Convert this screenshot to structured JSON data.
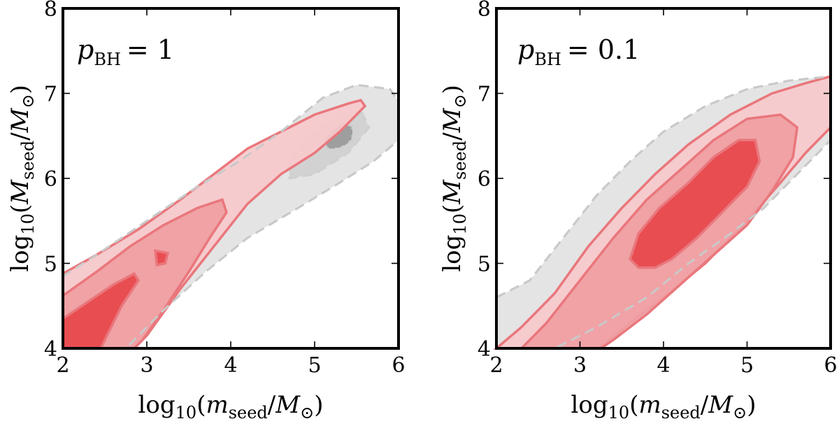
{
  "chart_data": [
    {
      "type": "contour",
      "name": "panel-left",
      "annotation": {
        "symbol": "p",
        "sub": "BH",
        "eq": "= 1"
      },
      "xlabel": {
        "pre": "log",
        "sub10": "10",
        "open": "(",
        "m": "m",
        "msub": "seed",
        "slash": "/",
        "M": "M",
        "Msub": "⊙",
        "close": ")"
      },
      "ylabel": {
        "pre": "log",
        "sub10": "10",
        "open": "(",
        "m": "M",
        "msub": "seed",
        "slash": "/",
        "M": "M",
        "Msub": "⊙",
        "close": ")"
      },
      "xlim": [
        2,
        6
      ],
      "ylim": [
        4,
        8
      ],
      "xticks": [
        "2",
        "3",
        "4",
        "5",
        "6"
      ],
      "yticks": [
        "4",
        "5",
        "6",
        "7",
        "8"
      ],
      "gray_contours": [
        {
          "level": "outer",
          "color": "#e4e4e4",
          "points": [
            [
              2.0,
              4.85
            ],
            [
              2.4,
              5.1
            ],
            [
              3.0,
              5.5
            ],
            [
              3.6,
              5.9
            ],
            [
              4.1,
              6.2
            ],
            [
              4.6,
              6.55
            ],
            [
              5.1,
              6.95
            ],
            [
              5.5,
              7.1
            ],
            [
              5.9,
              7.05
            ],
            [
              6.0,
              6.9
            ],
            [
              6.0,
              6.45
            ],
            [
              5.7,
              6.2
            ],
            [
              5.3,
              5.95
            ],
            [
              4.8,
              5.65
            ],
            [
              4.2,
              5.3
            ],
            [
              3.7,
              4.9
            ],
            [
              3.2,
              4.45
            ],
            [
              2.8,
              4.05
            ],
            [
              2.7,
              4.0
            ],
            [
              2.0,
              4.0
            ]
          ]
        },
        {
          "level": "mid",
          "color": "#d2d2d2",
          "points": [
            [
              4.7,
              6.2
            ],
            [
              5.0,
              6.55
            ],
            [
              5.3,
              6.75
            ],
            [
              5.55,
              6.8
            ],
            [
              5.65,
              6.6
            ],
            [
              5.4,
              6.3
            ],
            [
              5.0,
              6.05
            ],
            [
              4.7,
              6.0
            ]
          ]
        },
        {
          "level": "inner",
          "color": "#9e9e9e",
          "points": [
            [
              5.1,
              6.45
            ],
            [
              5.3,
              6.65
            ],
            [
              5.45,
              6.62
            ],
            [
              5.45,
              6.45
            ],
            [
              5.3,
              6.35
            ],
            [
              5.15,
              6.35
            ]
          ]
        }
      ],
      "red_contours": [
        {
          "level": "outer",
          "color": "#f7c9cc",
          "points": [
            [
              2.0,
              4.88
            ],
            [
              2.4,
              5.1
            ],
            [
              2.9,
              5.4
            ],
            [
              3.4,
              5.75
            ],
            [
              3.8,
              6.05
            ],
            [
              4.2,
              6.35
            ],
            [
              4.6,
              6.55
            ],
            [
              5.0,
              6.75
            ],
            [
              5.4,
              6.88
            ],
            [
              5.55,
              6.92
            ],
            [
              5.6,
              6.85
            ],
            [
              5.5,
              6.75
            ],
            [
              5.3,
              6.55
            ],
            [
              5.0,
              6.3
            ],
            [
              4.6,
              6.05
            ],
            [
              4.2,
              5.7
            ],
            [
              3.8,
              5.2
            ],
            [
              3.4,
              4.7
            ],
            [
              3.0,
              4.15
            ],
            [
              2.85,
              4.0
            ],
            [
              2.0,
              4.0
            ]
          ]
        },
        {
          "level": "mid",
          "color": "#ef9ea2",
          "points": [
            [
              2.0,
              4.62
            ],
            [
              2.4,
              4.9
            ],
            [
              2.8,
              5.2
            ],
            [
              3.2,
              5.45
            ],
            [
              3.6,
              5.65
            ],
            [
              3.9,
              5.75
            ],
            [
              3.95,
              5.6
            ],
            [
              3.75,
              5.3
            ],
            [
              3.5,
              4.9
            ],
            [
              3.2,
              4.45
            ],
            [
              2.95,
              4.1
            ],
            [
              2.85,
              4.0
            ],
            [
              2.0,
              4.0
            ]
          ]
        },
        {
          "level": "inner",
          "color": "#e7454b",
          "points": [
            [
              2.0,
              4.35
            ],
            [
              2.3,
              4.55
            ],
            [
              2.6,
              4.75
            ],
            [
              2.85,
              4.88
            ],
            [
              2.9,
              4.8
            ],
            [
              2.7,
              4.5
            ],
            [
              2.55,
              4.2
            ],
            [
              2.45,
              4.0
            ],
            [
              2.0,
              4.0
            ]
          ]
        },
        {
          "level": "island",
          "color": "#e7454b",
          "points": [
            [
              3.1,
              5.15
            ],
            [
              3.25,
              5.12
            ],
            [
              3.22,
              5.0
            ],
            [
              3.12,
              4.98
            ]
          ]
        }
      ]
    },
    {
      "type": "contour",
      "name": "panel-right",
      "annotation": {
        "symbol": "p",
        "sub": "BH",
        "eq": "= 0.1"
      },
      "xlabel": {
        "pre": "log",
        "sub10": "10",
        "open": "(",
        "m": "m",
        "msub": "seed",
        "slash": "/",
        "M": "M",
        "Msub": "⊙",
        "close": ")"
      },
      "ylabel": {
        "pre": "log",
        "sub10": "10",
        "open": "(",
        "m": "M",
        "msub": "seed",
        "slash": "/",
        "M": "M",
        "Msub": "⊙",
        "close": ")"
      },
      "xlim": [
        2,
        6
      ],
      "ylim": [
        4,
        8
      ],
      "xticks": [
        "2",
        "3",
        "4",
        "5",
        "6"
      ],
      "yticks": [
        "4",
        "5",
        "6",
        "7",
        "8"
      ],
      "gray_contours": [
        {
          "level": "outer",
          "color": "#e4e4e4",
          "points": [
            [
              2.0,
              4.6
            ],
            [
              2.4,
              4.8
            ],
            [
              2.8,
              5.3
            ],
            [
              3.2,
              5.8
            ],
            [
              3.6,
              6.2
            ],
            [
              4.0,
              6.55
            ],
            [
              4.5,
              6.85
            ],
            [
              5.0,
              7.05
            ],
            [
              5.5,
              7.15
            ],
            [
              6.0,
              7.2
            ],
            [
              6.0,
              6.45
            ],
            [
              5.6,
              6.05
            ],
            [
              5.2,
              5.65
            ],
            [
              4.8,
              5.35
            ],
            [
              4.3,
              5.0
            ],
            [
              3.8,
              4.6
            ],
            [
              3.2,
              4.25
            ],
            [
              2.7,
              4.0
            ],
            [
              2.0,
              4.0
            ]
          ]
        }
      ],
      "red_contours": [
        {
          "level": "outer",
          "color": "#f7c9cc",
          "points": [
            [
              2.0,
              4.0
            ],
            [
              2.3,
              4.25
            ],
            [
              2.7,
              4.65
            ],
            [
              3.1,
              5.2
            ],
            [
              3.5,
              5.65
            ],
            [
              3.9,
              6.05
            ],
            [
              4.3,
              6.4
            ],
            [
              4.8,
              6.75
            ],
            [
              5.3,
              7.0
            ],
            [
              5.7,
              7.12
            ],
            [
              6.0,
              7.2
            ],
            [
              6.0,
              6.6
            ],
            [
              5.7,
              6.3
            ],
            [
              5.4,
              5.95
            ],
            [
              5.0,
              5.5
            ],
            [
              4.5,
              5.0
            ],
            [
              4.0,
              4.6
            ],
            [
              3.6,
              4.3
            ],
            [
              3.3,
              4.05
            ],
            [
              3.2,
              4.0
            ]
          ]
        },
        {
          "level": "mid",
          "color": "#ef9ea2",
          "points": [
            [
              2.3,
              4.0
            ],
            [
              2.6,
              4.3
            ],
            [
              3.0,
              4.8
            ],
            [
              3.4,
              5.3
            ],
            [
              3.8,
              5.75
            ],
            [
              4.2,
              6.1
            ],
            [
              4.6,
              6.45
            ],
            [
              5.0,
              6.7
            ],
            [
              5.4,
              6.75
            ],
            [
              5.6,
              6.6
            ],
            [
              5.55,
              6.25
            ],
            [
              5.3,
              5.85
            ],
            [
              5.0,
              5.45
            ],
            [
              4.6,
              5.1
            ],
            [
              4.2,
              4.75
            ],
            [
              3.8,
              4.4
            ],
            [
              3.4,
              4.1
            ],
            [
              3.25,
              4.0
            ]
          ]
        },
        {
          "level": "inner",
          "color": "#e7454b",
          "points": [
            [
              3.6,
              5.05
            ],
            [
              3.7,
              5.35
            ],
            [
              3.95,
              5.65
            ],
            [
              4.3,
              5.95
            ],
            [
              4.6,
              6.25
            ],
            [
              4.9,
              6.45
            ],
            [
              5.1,
              6.45
            ],
            [
              5.15,
              6.2
            ],
            [
              5.0,
              5.9
            ],
            [
              4.7,
              5.6
            ],
            [
              4.4,
              5.3
            ],
            [
              4.1,
              5.05
            ],
            [
              3.9,
              4.95
            ],
            [
              3.7,
              4.95
            ]
          ]
        }
      ]
    }
  ]
}
